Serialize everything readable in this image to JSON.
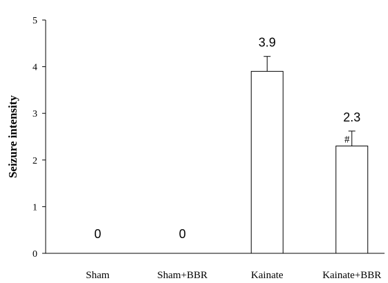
{
  "chart_data": {
    "type": "bar",
    "title": "",
    "xlabel": "",
    "ylabel": "Seizure intensity",
    "categories": [
      "Sham",
      "Sham+BBR",
      "Kainate",
      "Kainate+BBR"
    ],
    "values": [
      0,
      0,
      3.9,
      2.3
    ],
    "value_labels": [
      "0",
      "0",
      "3.9",
      "2.3"
    ],
    "error_upper": [
      0,
      0,
      0.32,
      0.32
    ],
    "annotations": [
      "",
      "",
      "",
      "#"
    ],
    "ylim": [
      0,
      5
    ],
    "yticks": [
      "0",
      "1",
      "2",
      "3",
      "4",
      "5"
    ],
    "grid": false,
    "bar_fill": "#ffffff",
    "bar_stroke": "#000000"
  }
}
